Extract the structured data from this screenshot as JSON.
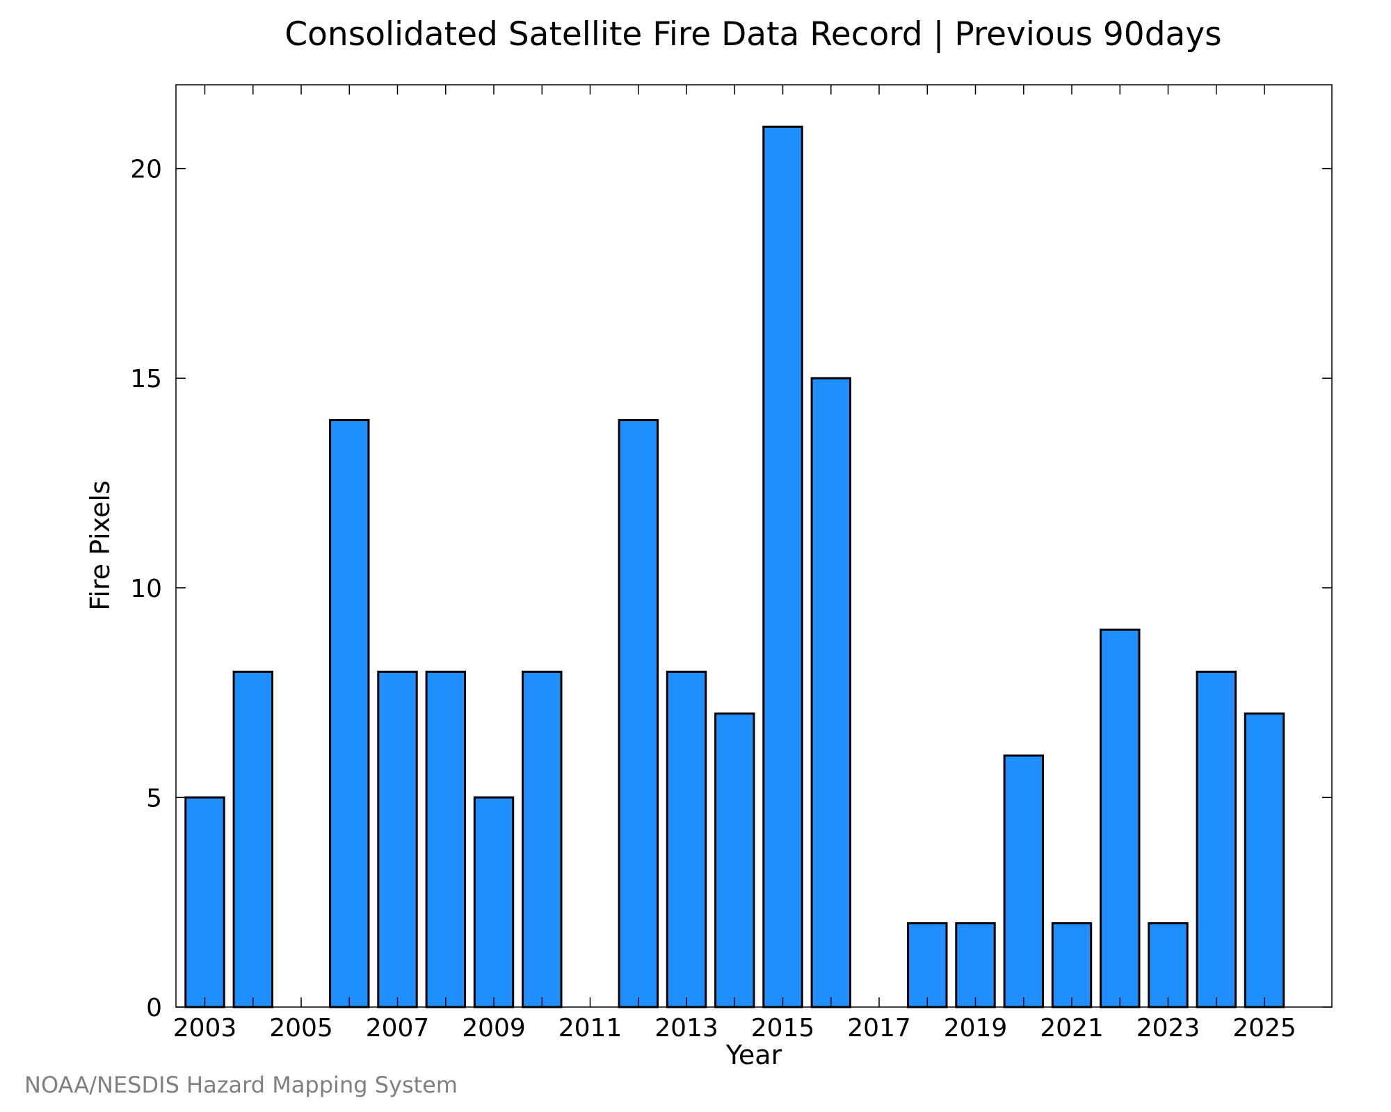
{
  "credit": "NOAA/NESDIS Hazard Mapping System",
  "colors": {
    "bar_fill": "#1f8fff",
    "bar_stroke": "#000000",
    "axis": "#000000",
    "credit": "#808080"
  },
  "chart_data": {
    "type": "bar",
    "title": "Consolidated Satellite Fire Data Record | Previous 90days",
    "xlabel": "Year",
    "ylabel": "Fire Pixels",
    "categories": [
      "2003",
      "2004",
      "2005",
      "2006",
      "2007",
      "2008",
      "2009",
      "2010",
      "2011",
      "2012",
      "2013",
      "2014",
      "2015",
      "2016",
      "2017",
      "2018",
      "2019",
      "2020",
      "2021",
      "2022",
      "2023",
      "2024",
      "2025"
    ],
    "values": [
      5,
      8,
      0,
      14,
      8,
      8,
      5,
      8,
      0,
      14,
      8,
      7,
      21,
      15,
      0,
      2,
      2,
      6,
      2,
      9,
      2,
      8,
      7
    ],
    "x_tick_labels": [
      "2003",
      "2005",
      "2007",
      "2009",
      "2011",
      "2013",
      "2015",
      "2017",
      "2019",
      "2021",
      "2023",
      "2025"
    ],
    "y_tick_labels": [
      "0",
      "5",
      "10",
      "15",
      "20"
    ],
    "xlim": [
      2002.4,
      2026.4
    ],
    "ylim": [
      0,
      22
    ],
    "grid": false,
    "legend": "none"
  }
}
